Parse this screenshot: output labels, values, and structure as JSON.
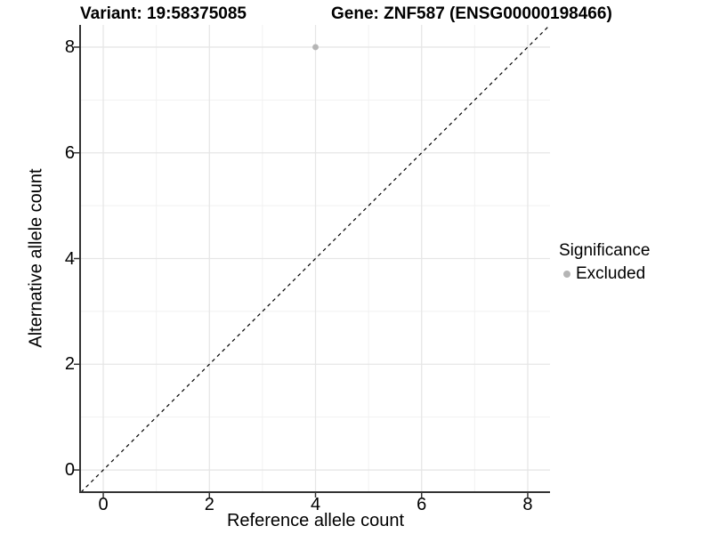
{
  "header": {
    "variant_title": "Variant: 19:58375085",
    "gene_title": "Gene: ZNF587 (ENSG00000198466)"
  },
  "axes": {
    "x_label": "Reference allele count",
    "y_label": "Alternative allele count",
    "x_tick_labels": [
      "0",
      "2",
      "4",
      "6",
      "8"
    ],
    "y_tick_labels": [
      "0",
      "2",
      "4",
      "6",
      "8"
    ]
  },
  "legend": {
    "title": "Significance",
    "position": "right",
    "items": [
      {
        "label": "Excluded",
        "color": "#b5b5b5"
      }
    ]
  },
  "chart_data": {
    "type": "scatter",
    "title_left": "Variant: 19:58375085",
    "title_right": "Gene: ZNF587 (ENSG00000198466)",
    "xlabel": "Reference allele count",
    "ylabel": "Alternative allele count",
    "xlim": [
      0,
      8
    ],
    "ylim": [
      0,
      8
    ],
    "x_domain_expanded": [
      -0.42,
      8.42
    ],
    "y_domain_expanded": [
      -0.42,
      8.42
    ],
    "x_major_ticks": [
      0,
      2,
      4,
      6,
      8
    ],
    "y_major_ticks": [
      0,
      2,
      4,
      6,
      8
    ],
    "x_minor_ticks": [
      1,
      3,
      5,
      7
    ],
    "y_minor_ticks": [
      1,
      3,
      5,
      7
    ],
    "grid": true,
    "legend_position": "right",
    "points": [
      {
        "x": 4,
        "y": 8,
        "series": "Excluded",
        "color": "#b5b5b5"
      }
    ],
    "reference_line": {
      "equation": "y = x",
      "style": "dashed",
      "color": "#000000"
    },
    "colors": {
      "grid_major": "#e6e6e6",
      "grid_minor": "#f1f1f1",
      "axis_line": "#333333",
      "tick_mark": "#333333",
      "point": "#b5b5b5",
      "background": "#ffffff"
    }
  }
}
